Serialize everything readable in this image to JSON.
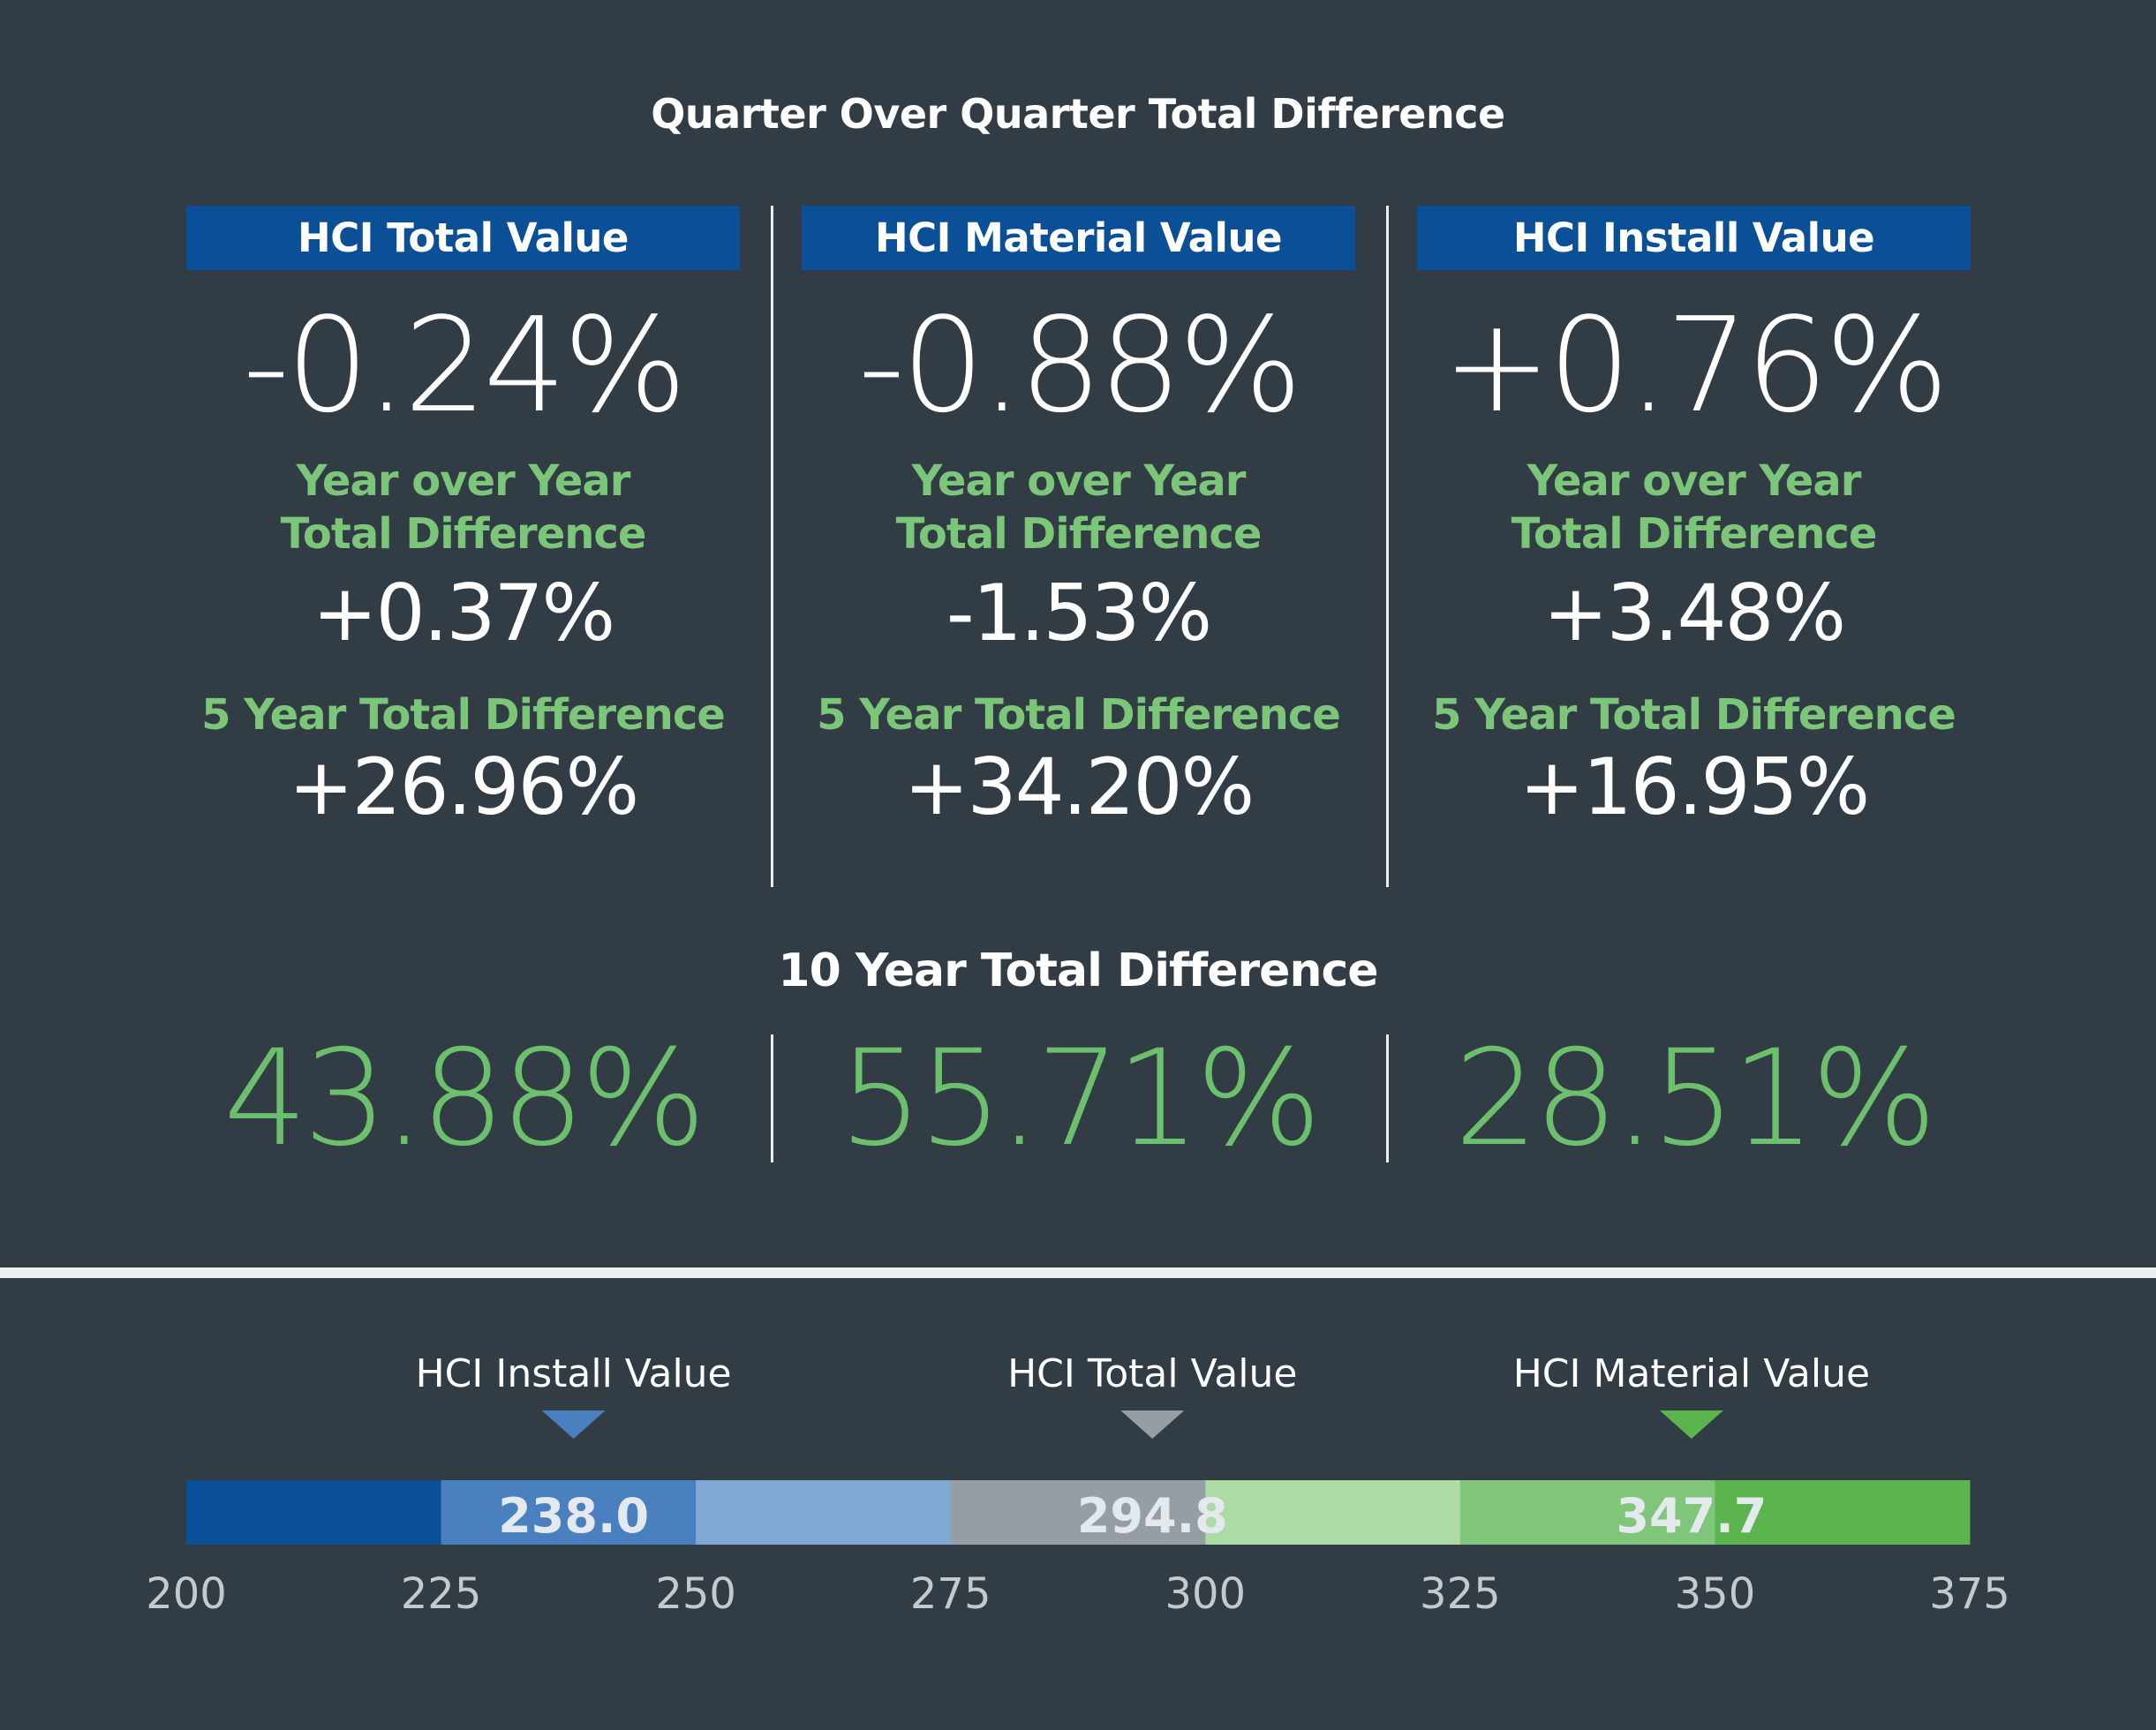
{
  "title": "Quarter Over Quarter Total Difference",
  "columns": [
    {
      "header": "HCI Total Value",
      "qoq": "-0.24%",
      "yoy_label_1": "Year over Year",
      "yoy_label_2": "Total Difference",
      "yoy": "+0.37%",
      "five_label": "5 Year Total Difference",
      "five_year": "+26.96%"
    },
    {
      "header": "HCI Material Value",
      "qoq": "-0.88%",
      "yoy_label_1": "Year over Year",
      "yoy_label_2": "Total Difference",
      "yoy": "-1.53%",
      "five_label": "5 Year Total Difference",
      "five_year": "+34.20%"
    },
    {
      "header": "HCI Install Value",
      "qoq": "+0.76%",
      "yoy_label_1": "Year over Year",
      "yoy_label_2": "Total Difference",
      "yoy": "+3.48%",
      "five_label": "5 Year Total Difference",
      "five_year": "+16.95%"
    }
  ],
  "ten_year": {
    "title": "10 Year Total Difference",
    "values": [
      "43.88%",
      "55.71%",
      "28.51%"
    ]
  },
  "chart_data": {
    "type": "bar",
    "title": "",
    "axis_min": 200,
    "axis_max": 375,
    "ticks": [
      "200",
      "225",
      "250",
      "275",
      "300",
      "325",
      "350",
      "375"
    ],
    "segments": [
      {
        "from": 200,
        "to": 225,
        "color": "#0b4f96"
      },
      {
        "from": 225,
        "to": 250,
        "color": "#4a7fc0"
      },
      {
        "from": 250,
        "to": 275,
        "color": "#7fa9d2"
      },
      {
        "from": 275,
        "to": 300,
        "color": "#969ea5"
      },
      {
        "from": 300,
        "to": 325,
        "color": "#acdba6"
      },
      {
        "from": 325,
        "to": 350,
        "color": "#80c67a"
      },
      {
        "from": 350,
        "to": 375,
        "color": "#5cb44f"
      }
    ],
    "markers": [
      {
        "name": "HCI Install Value",
        "value": 238.0,
        "label": "238.0",
        "arrow_color": "#4a7fc0"
      },
      {
        "name": "HCI Total Value",
        "value": 294.8,
        "label": "294.8",
        "arrow_color": "#969ea5"
      },
      {
        "name": "HCI Material Value",
        "value": 347.7,
        "label": "347.7",
        "arrow_color": "#5cb44f"
      }
    ]
  },
  "colors": {
    "background": "#323c45",
    "header_blue": "#0b4f96",
    "accent_green": "#7cc67a",
    "ten_year_green": "#6cbf6c"
  }
}
